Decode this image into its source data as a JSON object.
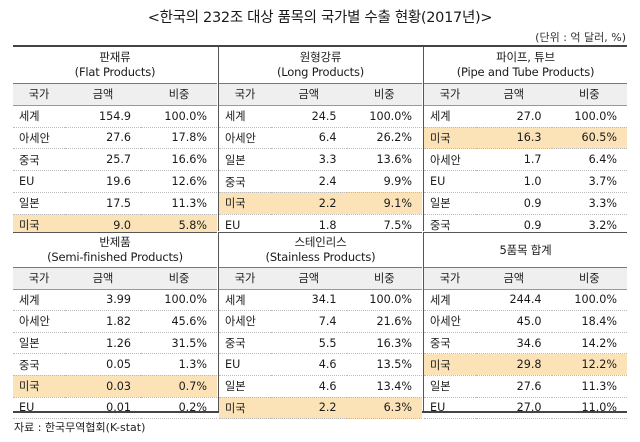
{
  "title": "<한국의 232조 대상 품목의 국가별 수출 현황(2017년)>",
  "unit": "(단위 : 억 달러, %)",
  "headers": {
    "country": "국가",
    "amount": "금액",
    "share": "비중"
  },
  "panels": [
    {
      "title_ko": "판재류",
      "title_en": "(Flat Products)",
      "rows": [
        {
          "country": "세계",
          "amount": "154.9",
          "share": "100.0%",
          "highlight": false
        },
        {
          "country": "아세안",
          "amount": "27.6",
          "share": "17.8%",
          "highlight": false
        },
        {
          "country": "중국",
          "amount": "25.7",
          "share": "16.6%",
          "highlight": false
        },
        {
          "country": "EU",
          "amount": "19.6",
          "share": "12.6%",
          "highlight": false
        },
        {
          "country": "일본",
          "amount": "17.5",
          "share": "11.3%",
          "highlight": false
        },
        {
          "country": "미국",
          "amount": "9.0",
          "share": "5.8%",
          "highlight": true
        }
      ]
    },
    {
      "title_ko": "원형강류",
      "title_en": "(Long Products)",
      "rows": [
        {
          "country": "세계",
          "amount": "24.5",
          "share": "100.0%",
          "highlight": false
        },
        {
          "country": "아세안",
          "amount": "6.4",
          "share": "26.2%",
          "highlight": false
        },
        {
          "country": "일본",
          "amount": "3.3",
          "share": "13.6%",
          "highlight": false
        },
        {
          "country": "중국",
          "amount": "2.4",
          "share": "9.9%",
          "highlight": false
        },
        {
          "country": "미국",
          "amount": "2.2",
          "share": "9.1%",
          "highlight": true
        },
        {
          "country": "EU",
          "amount": "1.8",
          "share": "7.5%",
          "highlight": false
        }
      ]
    },
    {
      "title_ko": "파이프, 튜브",
      "title_en": "(Pipe and Tube Products)",
      "rows": [
        {
          "country": "세계",
          "amount": "27.0",
          "share": "100.0%",
          "highlight": false
        },
        {
          "country": "미국",
          "amount": "16.3",
          "share": "60.5%",
          "highlight": true
        },
        {
          "country": "아세안",
          "amount": "1.7",
          "share": "6.4%",
          "highlight": false
        },
        {
          "country": "EU",
          "amount": "1.0",
          "share": "3.7%",
          "highlight": false
        },
        {
          "country": "일본",
          "amount": "0.9",
          "share": "3.3%",
          "highlight": false
        },
        {
          "country": "중국",
          "amount": "0.9",
          "share": "3.2%",
          "highlight": false
        }
      ]
    },
    {
      "title_ko": "반제품",
      "title_en": "(Semi-finished Products)",
      "rows": [
        {
          "country": "세계",
          "amount": "3.99",
          "share": "100.0%",
          "highlight": false
        },
        {
          "country": "아세안",
          "amount": "1.82",
          "share": "45.6%",
          "highlight": false
        },
        {
          "country": "일본",
          "amount": "1.26",
          "share": "31.5%",
          "highlight": false
        },
        {
          "country": "중국",
          "amount": "0.05",
          "share": "1.3%",
          "highlight": false
        },
        {
          "country": "미국",
          "amount": "0.03",
          "share": "0.7%",
          "highlight": true
        },
        {
          "country": "EU",
          "amount": "0.01",
          "share": "0.2%",
          "highlight": false
        }
      ]
    },
    {
      "title_ko": "스테인리스",
      "title_en": "(Stainless Products)",
      "rows": [
        {
          "country": "세계",
          "amount": "34.1",
          "share": "100.0%",
          "highlight": false
        },
        {
          "country": "아세안",
          "amount": "7.4",
          "share": "21.6%",
          "highlight": false
        },
        {
          "country": "중국",
          "amount": "5.5",
          "share": "16.3%",
          "highlight": false
        },
        {
          "country": "EU",
          "amount": "4.6",
          "share": "13.5%",
          "highlight": false
        },
        {
          "country": "일본",
          "amount": "4.6",
          "share": "13.4%",
          "highlight": false
        },
        {
          "country": "미국",
          "amount": "2.2",
          "share": "6.3%",
          "highlight": true
        }
      ]
    },
    {
      "title_ko": "5품목 합계",
      "title_en": "",
      "rows": [
        {
          "country": "세계",
          "amount": "244.4",
          "share": "100.0%",
          "highlight": false
        },
        {
          "country": "아세안",
          "amount": "45.0",
          "share": "18.4%",
          "highlight": false
        },
        {
          "country": "중국",
          "amount": "34.6",
          "share": "14.2%",
          "highlight": false
        },
        {
          "country": "미국",
          "amount": "29.8",
          "share": "12.2%",
          "highlight": true
        },
        {
          "country": "일본",
          "amount": "27.6",
          "share": "11.3%",
          "highlight": false
        },
        {
          "country": "EU",
          "amount": "27.0",
          "share": "11.0%",
          "highlight": false
        }
      ]
    }
  ],
  "source": "자료 : 한국무역협회(K-stat)",
  "colors": {
    "highlight": "#fbe3b7",
    "header_bg": "#efefef",
    "rule": "#444444"
  }
}
